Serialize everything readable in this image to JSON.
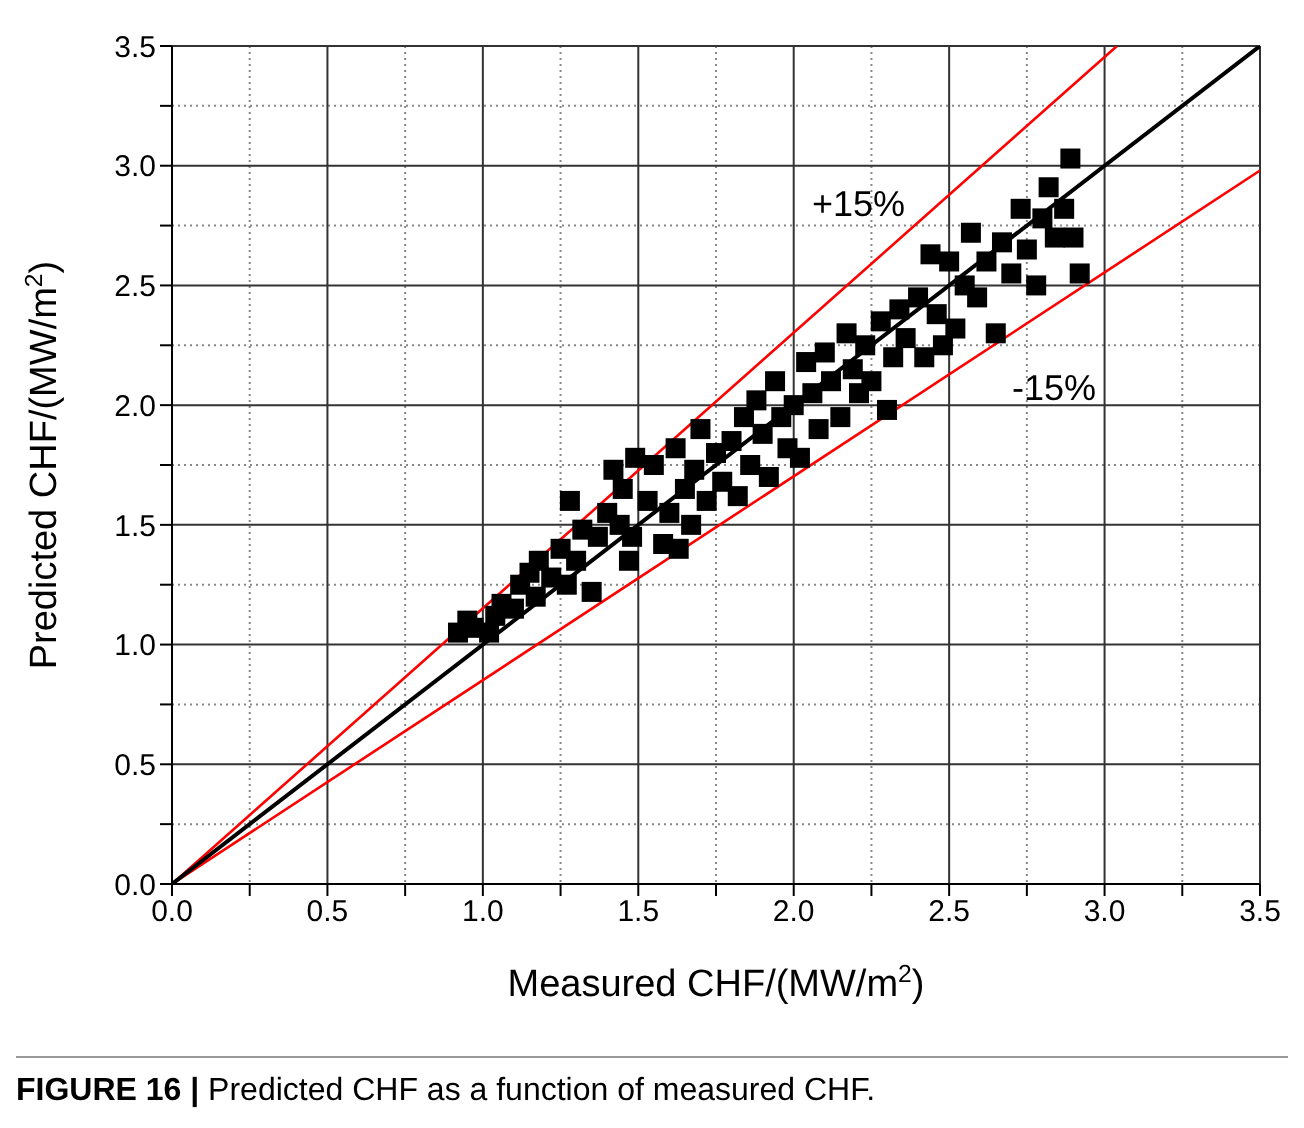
{
  "chart_data": {
    "type": "scatter",
    "xlabel": "Measured CHF/(MW/m$^{2}$)",
    "ylabel": "Predicted CHF/(MW/m$^{2}$)",
    "xlim": [
      0,
      3.5
    ],
    "ylim": [
      0,
      3.5
    ],
    "xticks": [
      {
        "value": 0,
        "label": "0.0"
      },
      {
        "value": 0.25,
        "label": null
      },
      {
        "value": 0.5,
        "label": "0.5"
      },
      {
        "value": 0.75,
        "label": null
      },
      {
        "value": 1,
        "label": "1.0"
      },
      {
        "value": 1.25,
        "label": null
      },
      {
        "value": 1.5,
        "label": "1.5"
      },
      {
        "value": 1.75,
        "label": null
      },
      {
        "value": 2,
        "label": "2.0"
      },
      {
        "value": 2.25,
        "label": null
      },
      {
        "value": 2.5,
        "label": "2.5"
      },
      {
        "value": 2.75,
        "label": null
      },
      {
        "value": 3,
        "label": "3.0"
      },
      {
        "value": 3.25,
        "label": null
      },
      {
        "value": 3.5,
        "label": "3.5"
      }
    ],
    "yticks": [
      {
        "value": 0,
        "label": "0.0"
      },
      {
        "value": 0.25,
        "label": null
      },
      {
        "value": 0.5,
        "label": "0.5"
      },
      {
        "value": 0.75,
        "label": null
      },
      {
        "value": 1,
        "label": "1.0"
      },
      {
        "value": 1.25,
        "label": null
      },
      {
        "value": 1.5,
        "label": "1.5"
      },
      {
        "value": 1.75,
        "label": null
      },
      {
        "value": 2,
        "label": "2.0"
      },
      {
        "value": 2.25,
        "label": null
      },
      {
        "value": 2.5,
        "label": "2.5"
      },
      {
        "value": 2.75,
        "label": null
      },
      {
        "value": 3,
        "label": "3.0"
      },
      {
        "value": 3.25,
        "label": null
      },
      {
        "value": 3.5,
        "label": "3.5"
      }
    ],
    "grid": true,
    "marker": "square",
    "series": [
      {
        "type": "line",
        "marker": "none",
        "color": "#ff0000",
        "x": [
          0,
          3.04
        ],
        "values": [
          0,
          3.5
        ]
      },
      {
        "type": "line",
        "marker": "none",
        "color": "#ff0000",
        "x": [
          0,
          3.5
        ],
        "values": [
          0,
          2.98
        ]
      },
      {
        "type": "line",
        "marker": "none",
        "color": "#000000",
        "x": [
          0,
          3.5
        ],
        "values": [
          0,
          3.5
        ]
      },
      {
        "color": "#000000",
        "x": [
          0.92,
          0.95,
          0.97,
          1.02,
          1.04,
          1.06,
          1.1,
          1.12,
          1.15,
          1.17,
          1.18,
          1.22,
          1.25,
          1.27,
          1.28,
          1.3,
          1.32,
          1.35,
          1.37,
          1.4,
          1.42,
          1.44,
          1.45,
          1.47,
          1.48,
          1.49,
          1.53,
          1.55,
          1.58,
          1.6,
          1.62,
          1.63,
          1.65,
          1.67,
          1.68,
          1.7,
          1.72,
          1.75,
          1.77,
          1.8,
          1.82,
          1.84,
          1.86,
          1.88,
          1.9,
          1.92,
          1.94,
          1.96,
          1.98,
          2.0,
          2.02,
          2.04,
          2.06,
          2.08,
          2.1,
          2.12,
          2.15,
          2.17,
          2.19,
          2.21,
          2.23,
          2.25,
          2.28,
          2.3,
          2.32,
          2.34,
          2.36,
          2.4,
          2.42,
          2.44,
          2.46,
          2.48,
          2.5,
          2.52,
          2.55,
          2.57,
          2.59,
          2.62,
          2.65,
          2.67,
          2.7,
          2.73,
          2.75,
          2.78,
          2.8,
          2.82,
          2.84,
          2.87,
          2.89,
          2.9,
          2.92
        ],
        "values": [
          1.05,
          1.1,
          1.07,
          1.05,
          1.12,
          1.17,
          1.15,
          1.25,
          1.3,
          1.2,
          1.35,
          1.28,
          1.4,
          1.25,
          1.6,
          1.35,
          1.48,
          1.22,
          1.45,
          1.55,
          1.73,
          1.5,
          1.65,
          1.35,
          1.45,
          1.78,
          1.6,
          1.75,
          1.42,
          1.55,
          1.82,
          1.4,
          1.65,
          1.5,
          1.73,
          1.9,
          1.6,
          1.8,
          1.68,
          1.85,
          1.62,
          1.95,
          1.75,
          2.02,
          1.88,
          1.7,
          2.1,
          1.95,
          1.82,
          2.0,
          1.78,
          2.18,
          2.05,
          1.9,
          2.22,
          2.1,
          1.95,
          2.3,
          2.15,
          2.05,
          2.25,
          2.1,
          2.35,
          1.98,
          2.2,
          2.4,
          2.28,
          2.45,
          2.2,
          2.63,
          2.38,
          2.25,
          2.6,
          2.32,
          2.5,
          2.72,
          2.45,
          2.6,
          2.3,
          2.68,
          2.55,
          2.82,
          2.65,
          2.5,
          2.78,
          2.91,
          2.7,
          2.82,
          3.03,
          2.7,
          2.55
        ]
      }
    ],
    "annotations": [
      "+15%",
      "-15%",
      "FIGURE 16 | Predicted CHF as a function of measured CHF."
    ]
  }
}
